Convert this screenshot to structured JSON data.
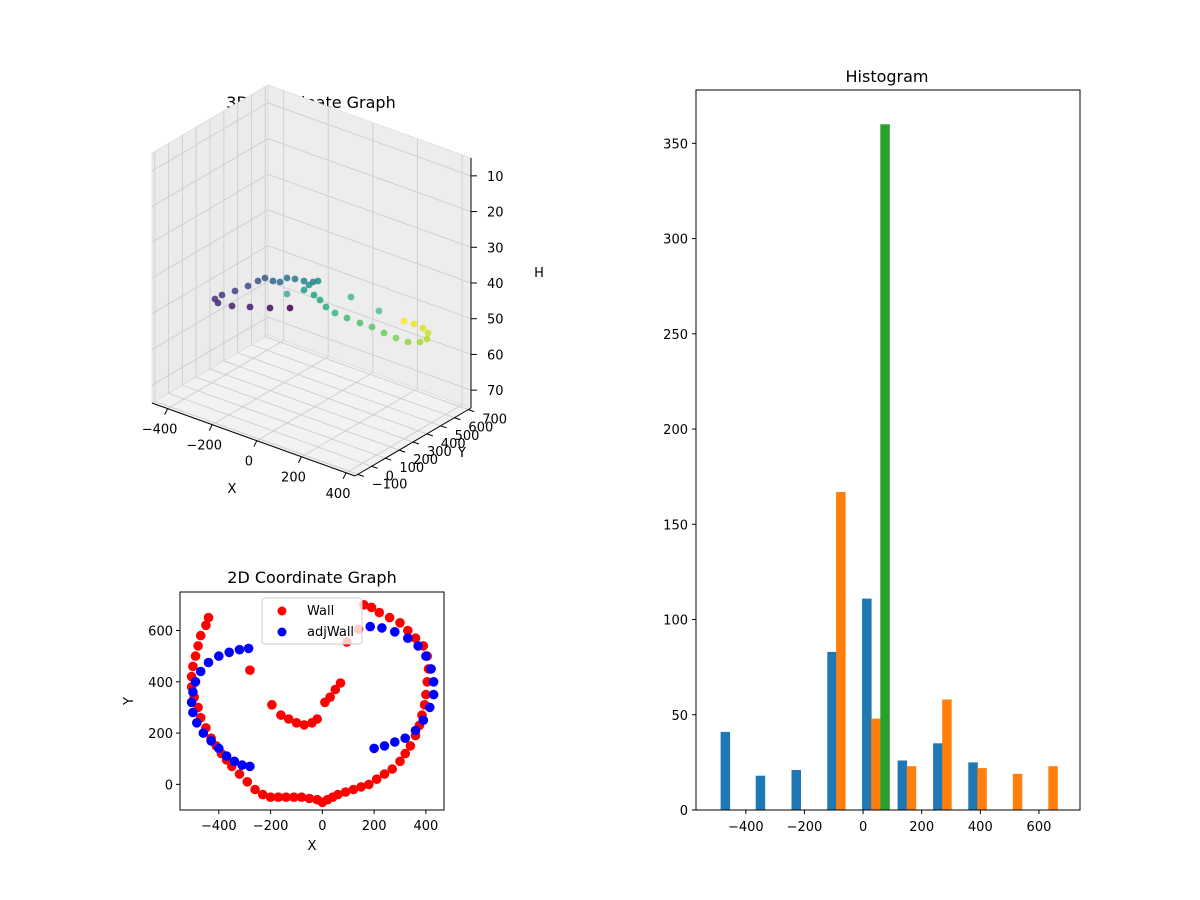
{
  "chart_data": [
    {
      "type": "scatter3d",
      "title": "3D Coordinate Graph",
      "xlabel": "X",
      "ylabel": "Y",
      "zlabel": "H",
      "xticks": [
        -400,
        -200,
        0,
        200,
        400
      ],
      "yticks": [
        -100,
        0,
        100,
        200,
        300,
        400,
        500,
        600,
        700
      ],
      "zticks": [
        10,
        20,
        30,
        40,
        50,
        60,
        70
      ],
      "xlim": [
        -470,
        440
      ],
      "ylim": [
        -120,
        720
      ],
      "zlim": [
        5,
        75
      ],
      "zinverted": true,
      "colormap": "viridis",
      "grid": true
    },
    {
      "type": "scatter",
      "title": "2D Coordinate Graph",
      "xlabel": "X",
      "ylabel": "Y",
      "xticks": [
        -400,
        -200,
        0,
        200,
        400
      ],
      "yticks": [
        0,
        200,
        400,
        600
      ],
      "xlim": [
        -550,
        470
      ],
      "ylim": [
        -100,
        750
      ],
      "legend_position": "top-center",
      "series": [
        {
          "name": "Wall",
          "color": "#ff0000",
          "points": [
            [
              -440,
              650
            ],
            [
              -450,
              620
            ],
            [
              -470,
              580
            ],
            [
              -480,
              540
            ],
            [
              -490,
              500
            ],
            [
              -500,
              460
            ],
            [
              -505,
              420
            ],
            [
              -505,
              380
            ],
            [
              -495,
              340
            ],
            [
              -480,
              300
            ],
            [
              -470,
              260
            ],
            [
              -450,
              220
            ],
            [
              -430,
              180
            ],
            [
              -410,
              150
            ],
            [
              -390,
              120
            ],
            [
              -370,
              95
            ],
            [
              -350,
              70
            ],
            [
              -320,
              40
            ],
            [
              -290,
              10
            ],
            [
              -260,
              -20
            ],
            [
              -230,
              -40
            ],
            [
              -200,
              -50
            ],
            [
              -170,
              -50
            ],
            [
              -140,
              -50
            ],
            [
              -110,
              -50
            ],
            [
              -80,
              -50
            ],
            [
              -50,
              -55
            ],
            [
              -20,
              -60
            ],
            [
              0,
              -70
            ],
            [
              20,
              -60
            ],
            [
              40,
              -50
            ],
            [
              60,
              -40
            ],
            [
              90,
              -30
            ],
            [
              120,
              -20
            ],
            [
              150,
              -10
            ],
            [
              180,
              0
            ],
            [
              210,
              20
            ],
            [
              240,
              40
            ],
            [
              270,
              60
            ],
            [
              300,
              90
            ],
            [
              320,
              120
            ],
            [
              340,
              150
            ],
            [
              360,
              190
            ],
            [
              375,
              230
            ],
            [
              385,
              270
            ],
            [
              395,
              310
            ],
            [
              400,
              350
            ],
            [
              405,
              400
            ],
            [
              410,
              450
            ],
            [
              405,
              500
            ],
            [
              390,
              540
            ],
            [
              360,
              570
            ],
            [
              330,
              600
            ],
            [
              300,
              630
            ],
            [
              260,
              650
            ],
            [
              220,
              670
            ],
            [
              190,
              690
            ],
            [
              160,
              700
            ],
            [
              140,
              605
            ],
            [
              95,
              555
            ],
            [
              70,
              395
            ],
            [
              50,
              370
            ],
            [
              30,
              340
            ],
            [
              10,
              320
            ],
            [
              -20,
              255
            ],
            [
              -40,
              240
            ],
            [
              -70,
              232
            ],
            [
              -100,
              240
            ],
            [
              -130,
              255
            ],
            [
              -160,
              270
            ],
            [
              -195,
              310
            ],
            [
              -280,
              445
            ]
          ]
        },
        {
          "name": "adjWall",
          "color": "#0000ff",
          "points": [
            [
              -280,
              70
            ],
            [
              -310,
              75
            ],
            [
              -340,
              90
            ],
            [
              -370,
              110
            ],
            [
              -400,
              140
            ],
            [
              -430,
              170
            ],
            [
              -460,
              200
            ],
            [
              -485,
              240
            ],
            [
              -500,
              280
            ],
            [
              -505,
              320
            ],
            [
              -500,
              360
            ],
            [
              -490,
              400
            ],
            [
              -470,
              440
            ],
            [
              -440,
              475
            ],
            [
              -400,
              500
            ],
            [
              -360,
              515
            ],
            [
              -320,
              525
            ],
            [
              -285,
              530
            ],
            [
              200,
              140
            ],
            [
              240,
              150
            ],
            [
              280,
              165
            ],
            [
              320,
              180
            ],
            [
              360,
              210
            ],
            [
              390,
              250
            ],
            [
              415,
              300
            ],
            [
              430,
              350
            ],
            [
              430,
              400
            ],
            [
              420,
              450
            ],
            [
              400,
              500
            ],
            [
              370,
              540
            ],
            [
              330,
              570
            ],
            [
              280,
              595
            ],
            [
              230,
              610
            ],
            [
              185,
              615
            ]
          ]
        }
      ]
    },
    {
      "type": "bar",
      "title": "Histogram",
      "xticks": [
        -400,
        -200,
        0,
        200,
        400,
        600
      ],
      "yticks": [
        0,
        50,
        100,
        150,
        200,
        250,
        300,
        350
      ],
      "xlim": [
        -570,
        740
      ],
      "ylim": [
        0,
        378
      ],
      "series": [
        {
          "color": "#1f77b4",
          "bins": [
            [
              -470,
              41
            ],
            [
              -350,
              18
            ],
            [
              -228,
              21
            ],
            [
              -106,
              83
            ],
            [
              13,
              111
            ],
            [
              134,
              26
            ],
            [
              255,
              35
            ],
            [
              375,
              25
            ]
          ]
        },
        {
          "color": "#ff7f0e",
          "bins": [
            [
              -76,
              167
            ],
            [
              44,
              48
            ],
            [
              165,
              23
            ],
            [
              286,
              58
            ],
            [
              406,
              22
            ],
            [
              527,
              19
            ],
            [
              648,
              23
            ]
          ]
        },
        {
          "color": "#2ca02c",
          "bins": [
            [
              75,
              360
            ]
          ]
        }
      ]
    }
  ]
}
